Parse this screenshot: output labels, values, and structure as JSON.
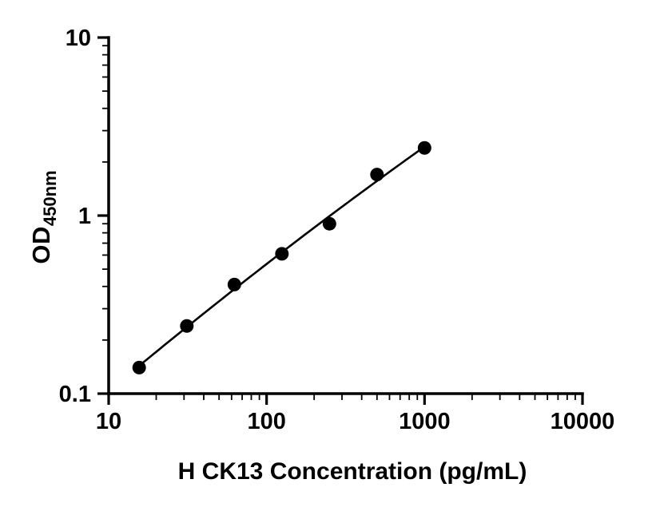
{
  "chart_data": {
    "type": "scatter",
    "title": "",
    "xlabel": "H CK13 Concentration (pg/mL)",
    "ylabel_main": "OD",
    "ylabel_sub": "450nm",
    "x_scale": "log10",
    "y_scale": "log10",
    "xlim": [
      10,
      10000
    ],
    "ylim": [
      0.1,
      10
    ],
    "grid": false,
    "legend": false,
    "minor_ticks": true,
    "x_ticks": [
      {
        "value": 10,
        "label": "10"
      },
      {
        "value": 100,
        "label": "100"
      },
      {
        "value": 1000,
        "label": "1000"
      },
      {
        "value": 10000,
        "label": "10000"
      }
    ],
    "y_ticks": [
      {
        "value": 0.1,
        "label": "0.1"
      },
      {
        "value": 1,
        "label": "1"
      },
      {
        "value": 10,
        "label": "10"
      }
    ],
    "series": [
      {
        "marker": "circle",
        "marker_color": "#000000",
        "line_color": "#000000",
        "fit_curve": true,
        "points": [
          {
            "x": 15.6,
            "y": 0.14
          },
          {
            "x": 31.25,
            "y": 0.24
          },
          {
            "x": 62.5,
            "y": 0.41
          },
          {
            "x": 125,
            "y": 0.61
          },
          {
            "x": 250,
            "y": 0.9
          },
          {
            "x": 500,
            "y": 1.7
          },
          {
            "x": 1000,
            "y": 2.4
          }
        ]
      }
    ]
  },
  "colors": {
    "background": "#ffffff",
    "axis": "#000000",
    "text": "#000000"
  }
}
